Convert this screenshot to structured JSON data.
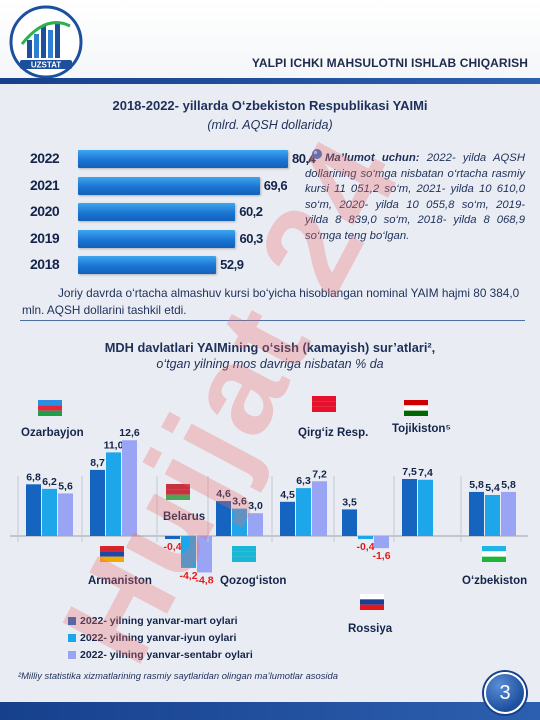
{
  "header": {
    "logo_text": "UZSTAT",
    "title": "YALPI ICHKI MAHSULOTNI ISHLAB CHIQARISH"
  },
  "watermark": "Hujjat 24",
  "section1": {
    "title": "2018-2022- yillarda O‘zbekiston Respublikasi YAIMi",
    "subtitle": "(mlrd. AQSH dollarida)",
    "info_lead": "Ma’lumot uchun:",
    "info_text": " 2022- yilda AQSH dollarining so‘mga nisbatan o‘rtacha rasmiy kursi 11 051,2 so‘m, 2021- yilda 10 610,0 so‘m, 2020- yilda 10 055,8 so‘m, 2019- yilda 8 839,0 so‘m, 2018- yilda 8 068,9 so‘mga teng bo‘lgan.",
    "note": "Joriy davrda o‘rtacha almashuv kursi bo‘yicha hisoblangan nominal YAIM hajmi 80 384,0 mln. AQSH dollarini tashkil etdi."
  },
  "chart_data": [
    {
      "type": "bar",
      "orientation": "horizontal",
      "title": "2018-2022- yillarda O‘zbekiston Respublikasi YAIMi",
      "subtitle": "(mlrd. AQSH dollarida)",
      "categories": [
        "2022",
        "2021",
        "2020",
        "2019",
        "2018"
      ],
      "values": [
        80.4,
        69.6,
        60.2,
        60.3,
        52.9
      ],
      "value_labels": [
        "80,4",
        "69,6",
        "60,2",
        "60,3",
        "52,9"
      ],
      "xlim": [
        0,
        85
      ],
      "grid": false,
      "colors": [
        "#1b75d3"
      ]
    },
    {
      "type": "bar",
      "title": "MDH davlatlari YAIMining o‘sish (kamayish) sur’atlari²,",
      "subtitle": "o‘tgan yilning mos davriga nisbatan % da",
      "categories": [
        "Ozarbayjon",
        "Armaniston",
        "Belarus",
        "Qozog‘iston",
        "Qirg‘iz Resp.",
        "Rossiya",
        "Tojikiston⁵",
        "O‘zbekiston"
      ],
      "series": [
        {
          "name": "2022- yilning yanvar-mart oylari",
          "color": "#1565c0",
          "values": [
            6.8,
            8.7,
            -0.4,
            4.6,
            4.5,
            3.5,
            7.5,
            5.8
          ],
          "labels": [
            "6,8",
            "8,7",
            "-0,4",
            "4,6",
            "4,5",
            "3,5",
            "7,5",
            "5,8"
          ]
        },
        {
          "name": "2022- yilning yanvar-iyun oylari",
          "color": "#1ea6ea",
          "values": [
            6.2,
            11.0,
            -4.2,
            3.6,
            6.3,
            -0.4,
            7.4,
            5.4
          ],
          "labels": [
            "6,2",
            "11,0",
            "-4,2",
            "3,6",
            "6,3",
            "-0,4",
            "7,4",
            "5,4"
          ]
        },
        {
          "name": "2022- yilning yanvar-sentabr oylari",
          "color": "#9aa4f5",
          "values": [
            5.6,
            12.6,
            -4.8,
            3.0,
            7.2,
            -1.6,
            null,
            5.8
          ],
          "labels": [
            "5,6",
            "12,6",
            "-4,8",
            "3,0",
            "7,2",
            "-1,6",
            "",
            "5,8"
          ]
        }
      ],
      "ylim": [
        -6,
        14
      ],
      "grid": false,
      "legend": "bottom-left"
    }
  ],
  "section2": {
    "title": "MDH davlatlari YAIMining o‘sish (kamayish) sur’atlari²,",
    "subtitle": "o‘tgan yilning mos davriga nisbatan % da"
  },
  "footnote": "²Milliy statistika xizmatlarining rasmiy saytlaridan olingan ma’lumotlar asosida",
  "page_number": "3"
}
